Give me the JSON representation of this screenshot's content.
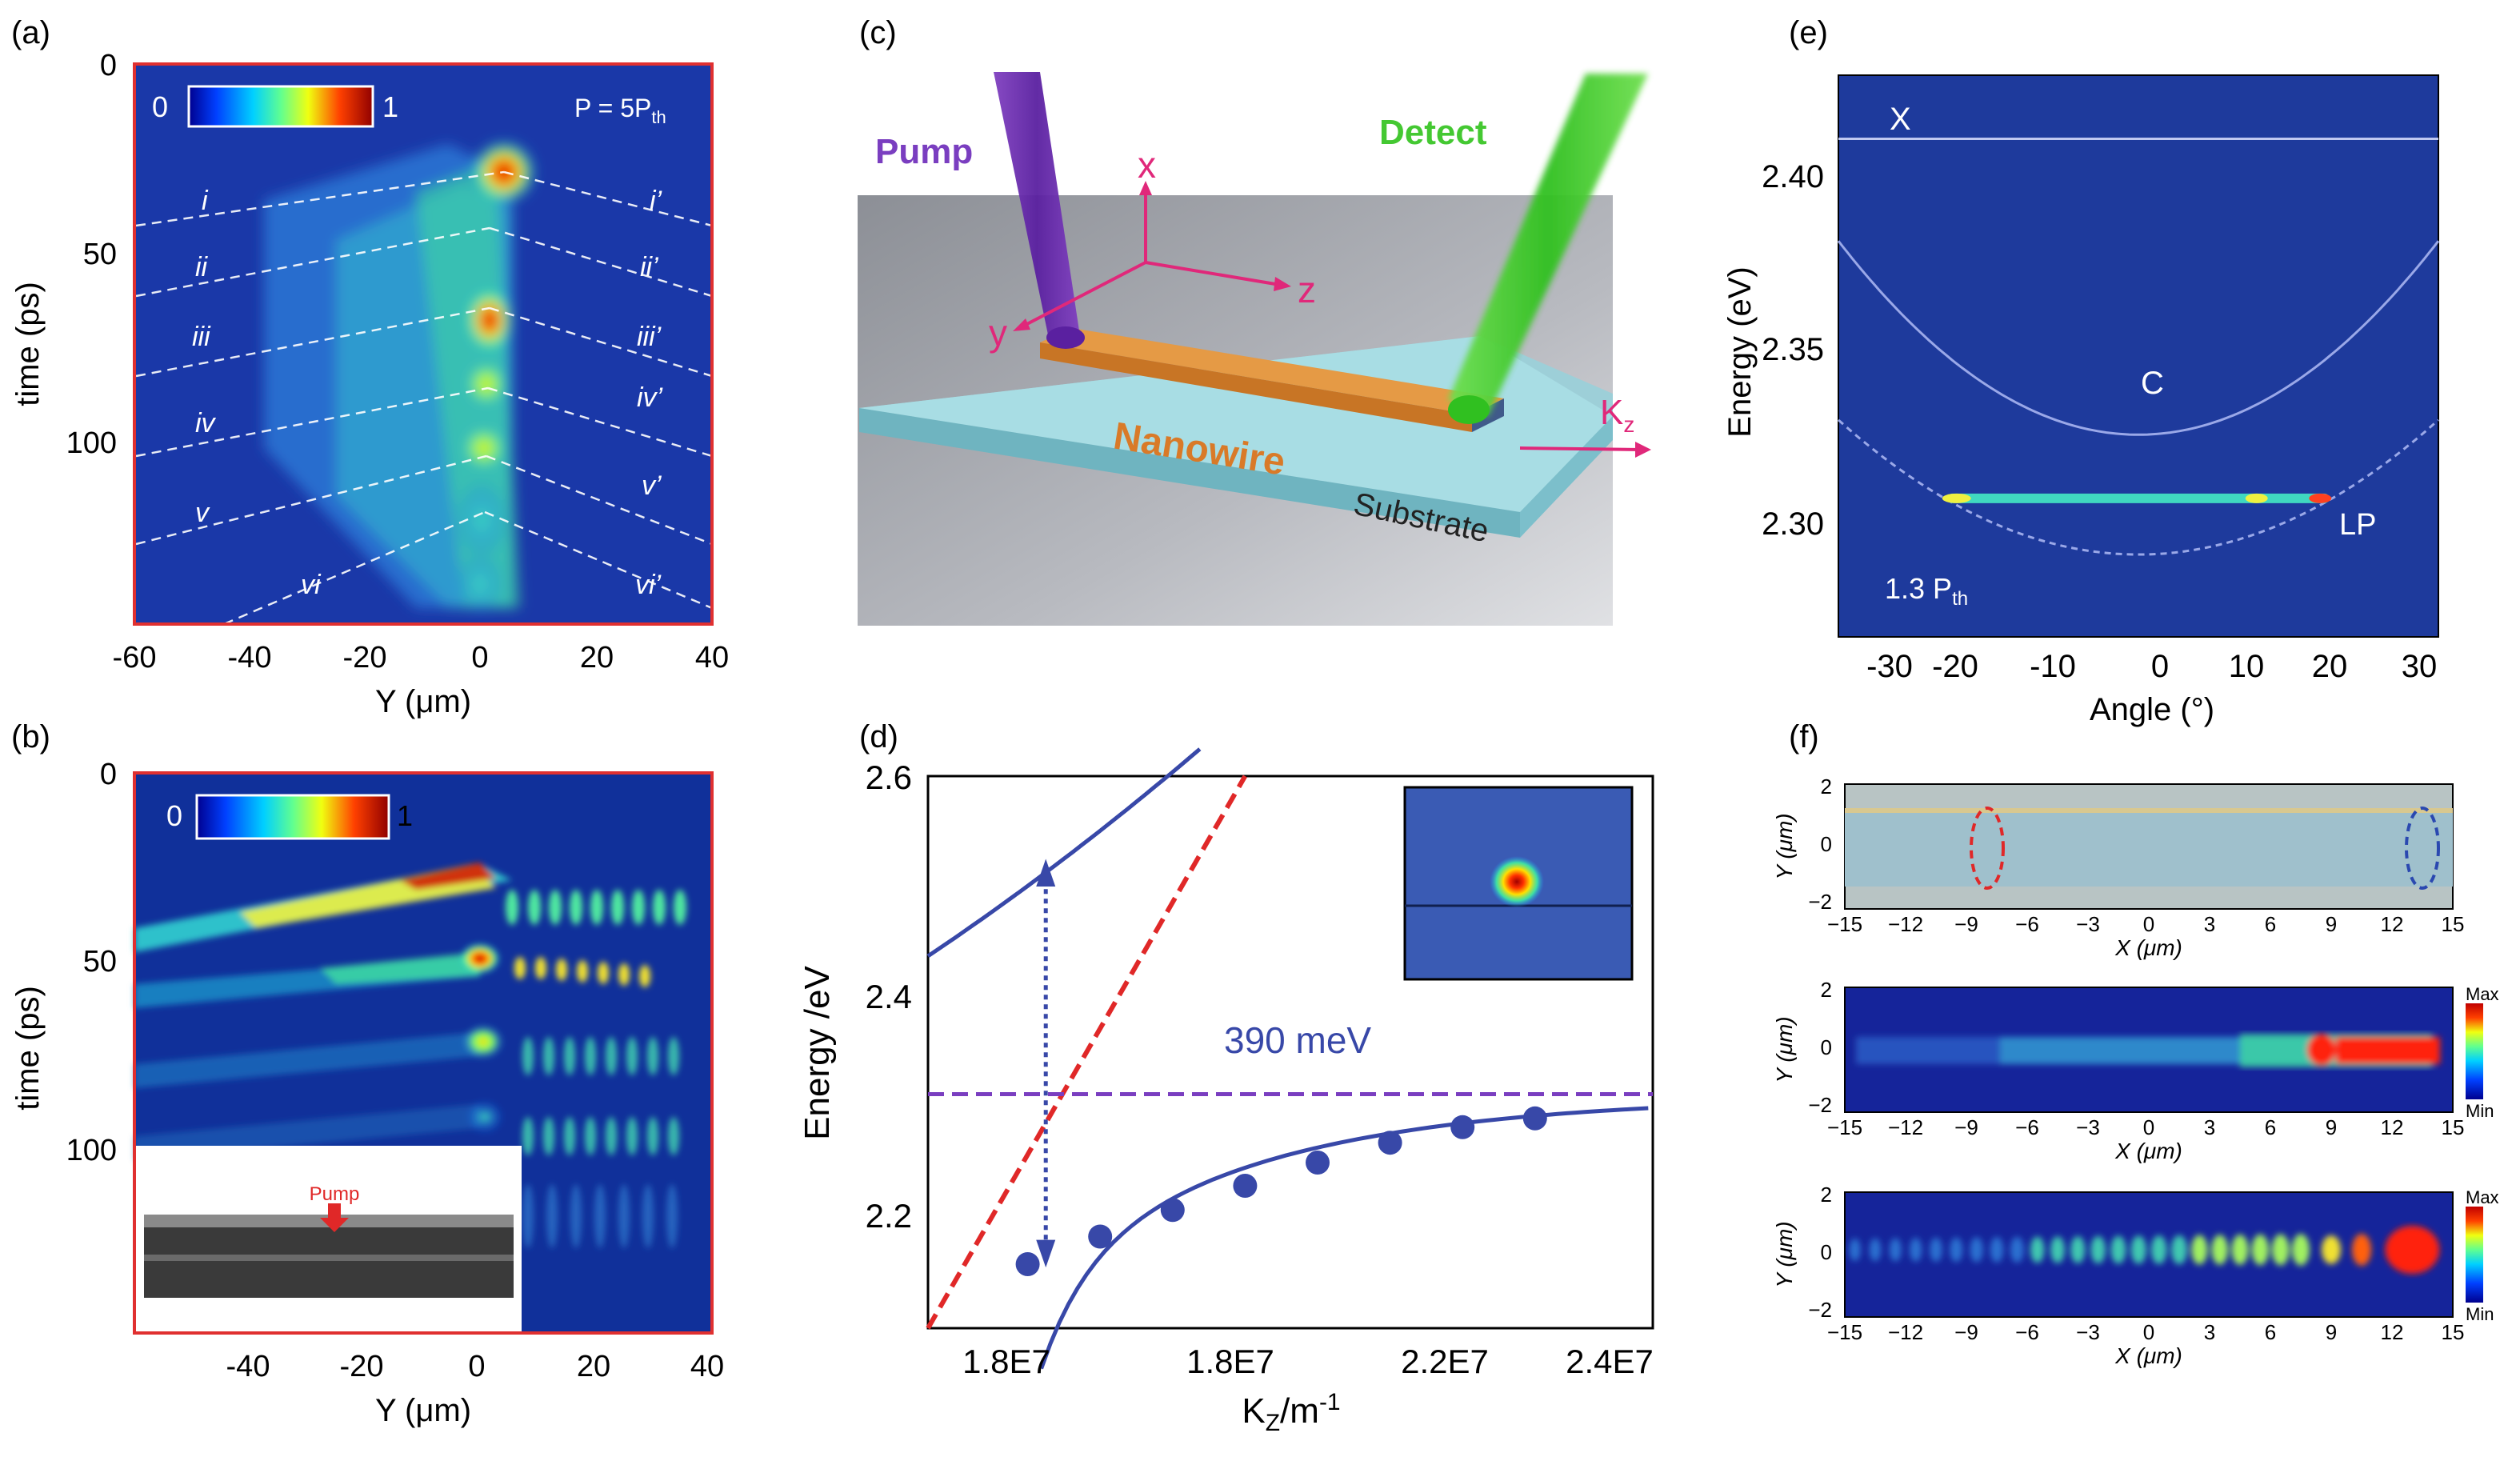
{
  "colors": {
    "panel_blue": "#1e3a9c",
    "frame_red": "#e03030",
    "curve_blue": "#3848a8",
    "dash_red": "#e02828",
    "dash_purple": "#7a3ec0",
    "detect_green": "#44c832",
    "pump_purple": "#6a30a8",
    "nanowire_orange": "#d98232",
    "substrate_teal": "#8ccbd6"
  },
  "panels": {
    "a": {
      "label": "(a)",
      "cb_min": "0",
      "cb_max": "1",
      "power": "P = 5P",
      "power_sub": "th",
      "xlabel": "Y (μm)",
      "ylabel": "time (ps)",
      "xticks": [
        "-60",
        "-40",
        "-20",
        "0",
        "20",
        "40"
      ],
      "yticks": [
        "0",
        "50",
        "100"
      ],
      "left_labels": [
        "i",
        "ii",
        "iii",
        "iv",
        "v",
        "vi"
      ],
      "right_labels": [
        "i’",
        "ii’",
        "iii’",
        "iv’",
        "v’",
        "vi’"
      ]
    },
    "b": {
      "label": "(b)",
      "cb_min": "0",
      "cb_max": "1",
      "xlabel": "Y (μm)",
      "ylabel": "time (ps)",
      "xticks": [
        "-40",
        "-20",
        "0",
        "20",
        "40"
      ],
      "yticks": [
        "0",
        "50",
        "100"
      ],
      "inset_label": "Pump"
    },
    "c": {
      "label": "(c)",
      "pump": "Pump",
      "detect": "Detect",
      "axis_x": "x",
      "axis_y": "y",
      "axis_z": "z",
      "nanowire": "Nanowire",
      "substrate": "Substrate",
      "kz": "K",
      "kz_sub": "z"
    },
    "e": {
      "label": "(e)",
      "xlabel": "Angle (°)",
      "ylabel": "Energy (eV)",
      "xticks": [
        "-30",
        "-20",
        "-10",
        "0",
        "10",
        "20",
        "30"
      ],
      "yticks": [
        "2.30",
        "2.35",
        "2.40"
      ],
      "X": "X",
      "C": "C",
      "LP": "LP",
      "power": "1.3 P",
      "power_sub": "th"
    },
    "f": {
      "label": "(f)",
      "xlabel": "X (μm)",
      "ylabel": "Y (μm)",
      "xticks": [
        "−15",
        "−12",
        "−9",
        "−6",
        "−3",
        "0",
        "3",
        "6",
        "9",
        "12",
        "15"
      ],
      "yticks": [
        "2",
        "0",
        "−2"
      ],
      "cb_max": "Max",
      "cb_min": "Min"
    }
  },
  "chart_data": [
    {
      "type": "heatmap",
      "panel": "a",
      "title": "",
      "xlabel": "Y (μm)",
      "ylabel": "time (ps)",
      "xlim": [
        -60,
        40
      ],
      "ylim": [
        145,
        0
      ],
      "annotation": "P = 5Pth",
      "colorbar": [
        0,
        1
      ]
    },
    {
      "type": "heatmap",
      "panel": "b",
      "xlabel": "Y (μm)",
      "ylabel": "time (ps)",
      "xlim": [
        -60,
        40
      ],
      "ylim": [
        145,
        0
      ],
      "colorbar": [
        0,
        1
      ]
    },
    {
      "type": "line",
      "panel": "d",
      "xlabel": "K_Z /m^-1",
      "ylabel": "Energy /eV",
      "xtick_labels": [
        "1.8E7",
        "1.8E7",
        "2.2E7",
        "2.4E7"
      ],
      "ytick_labels": [
        "2.2",
        "2.4",
        "2.6"
      ],
      "ylim": [
        2.1,
        2.6
      ],
      "annotation": "390 meV",
      "series": [],
      "points": {
        "x": [
          1.73,
          1.81,
          1.89,
          1.97,
          2.05,
          2.13,
          2.21,
          2.29
        ],
        "y": [
          2.158,
          2.183,
          2.207,
          2.229,
          2.25,
          2.268,
          2.282,
          2.29
        ]
      }
    },
    {
      "type": "line",
      "panel": "e",
      "xlabel": "Angle (°)",
      "ylabel": "Energy (eV)",
      "xlim": [
        -33,
        33
      ],
      "ylim": [
        2.275,
        2.425
      ],
      "series": [
        {
          "name": "X",
          "values": [
            2.408,
            2.408
          ]
        },
        {
          "name": "C",
          "min": 2.329
        },
        {
          "name": "LP",
          "min": 2.297
        }
      ],
      "lasing_energy": 2.312,
      "annotation": "1.3 Pth"
    },
    {
      "type": "heatmap",
      "panel": "f",
      "xlabel": "X (μm)",
      "ylabel": "Y (μm)",
      "xlim": [
        -15,
        15
      ],
      "ylim": [
        -2,
        2
      ],
      "colorbar": [
        "Min",
        "Max"
      ]
    }
  ],
  "d_labels": {
    "label": "(d)",
    "xlabel": "K",
    "xlabel_sub": "Z",
    "xlabel_unit": "/m",
    "xlabel_exp": "-1",
    "ylabel": "Energy /eV",
    "ann": "390 meV",
    "xticks": [
      "1.8E7",
      "1.8E7",
      "2.2E7",
      "2.4E7"
    ],
    "yticks": [
      "2.6",
      "2.4",
      "2.2"
    ]
  }
}
